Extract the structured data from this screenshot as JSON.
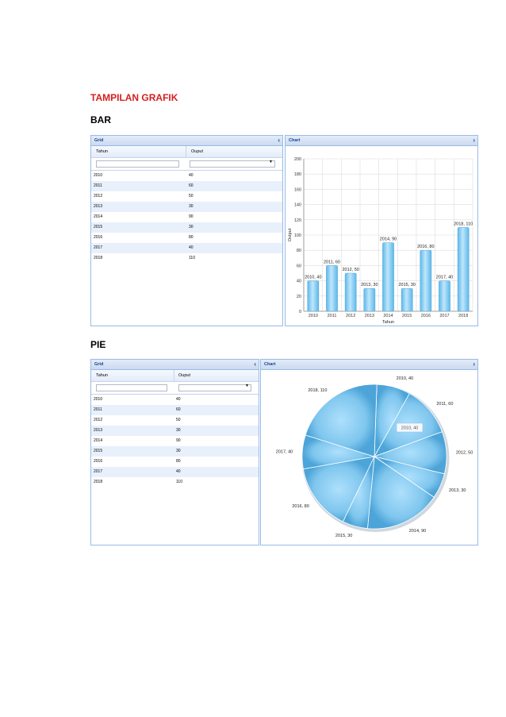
{
  "title": "TAMPILAN GRAFIK",
  "sections": {
    "bar_heading": "BAR",
    "pie_heading": "PIE"
  },
  "grid": {
    "panel_title": "Grid",
    "col_tahun": "Tahun",
    "col_output": "Ouput",
    "collapse_icon": "chevron-left-icon",
    "rows": [
      {
        "tahun": "2010",
        "output": "40"
      },
      {
        "tahun": "2011",
        "output": "60"
      },
      {
        "tahun": "2012",
        "output": "50"
      },
      {
        "tahun": "2013",
        "output": "30"
      },
      {
        "tahun": "2014",
        "output": "90"
      },
      {
        "tahun": "2015",
        "output": "30"
      },
      {
        "tahun": "2016",
        "output": "80"
      },
      {
        "tahun": "2017",
        "output": "40"
      },
      {
        "tahun": "2018",
        "output": "110"
      }
    ]
  },
  "chart_panel": {
    "panel_title": "Chart",
    "expand_icon": "chevron-right-icon"
  },
  "colors": {
    "bar_light": "#bfe6fb",
    "bar_dark": "#5cb8ea",
    "pie_light": "#aee0fc",
    "pie_dark": "#4ca4d8",
    "header_text": "#15428b",
    "row_alt": "#e8f0fb"
  },
  "chart_data": [
    {
      "type": "bar",
      "categories": [
        "2010",
        "2011",
        "2012",
        "2013",
        "2014",
        "2015",
        "2016",
        "2017",
        "2018"
      ],
      "values": [
        40,
        60,
        50,
        30,
        90,
        30,
        80,
        40,
        110
      ],
      "data_labels": [
        "2010, 40",
        "2011, 60",
        "2012, 50",
        "2013, 30",
        "2014, 90",
        "2015, 30",
        "2016, 80",
        "2017, 40",
        "2018, 110"
      ],
      "xlabel": "Tahun",
      "ylabel": "Output",
      "ylim": [
        0,
        200
      ],
      "yticks": [
        0,
        20,
        40,
        60,
        80,
        100,
        120,
        140,
        160,
        180,
        200
      ],
      "grid": true
    },
    {
      "type": "pie",
      "categories": [
        "2010",
        "2011",
        "2012",
        "2013",
        "2014",
        "2015",
        "2016",
        "2017",
        "2018"
      ],
      "values": [
        40,
        60,
        50,
        30,
        90,
        30,
        80,
        40,
        110
      ],
      "labels": [
        "2010, 40",
        "2011, 60",
        "2012, 50",
        "2013, 30",
        "2014, 90",
        "2015, 30",
        "2016, 80",
        "2017, 40",
        "2018, 110"
      ],
      "tooltip": "2010, 40"
    }
  ]
}
